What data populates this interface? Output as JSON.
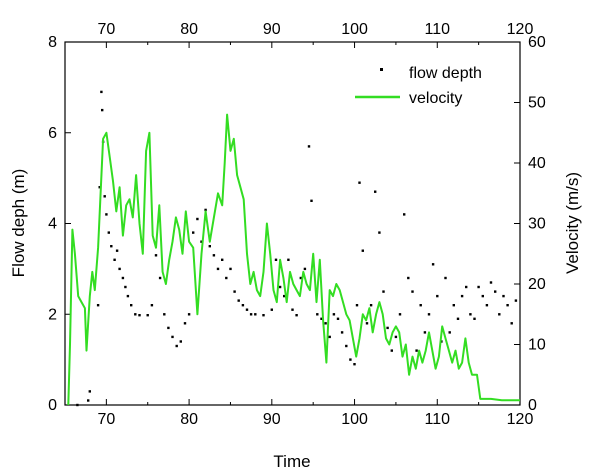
{
  "chart_data": {
    "type": "scatter",
    "xlabel": "Time",
    "ylabel_left": "Flow deph (m)",
    "ylabel_right": "Velocity (m/s)",
    "xlim": [
      65,
      120
    ],
    "ylim_left": [
      0,
      8
    ],
    "ylim_right": [
      0,
      60
    ],
    "x_ticks": [
      "70",
      "80",
      "90",
      "100",
      "110",
      "120"
    ],
    "x_ticks_top": [
      "70",
      "80",
      "90",
      "100",
      "110",
      "120"
    ],
    "y_ticks_left": [
      "0",
      "2",
      "4",
      "6",
      "8"
    ],
    "y_ticks_right": [
      "0",
      "10",
      "20",
      "30",
      "40",
      "50",
      "60"
    ],
    "grid": false,
    "legend_position": "top-right",
    "colors": {
      "flow_depth": "#000000",
      "velocity": "#33dd22"
    },
    "series": [
      {
        "name": "flow depth",
        "type": "scatter",
        "axis": "left",
        "points": [
          [
            66.5,
            0.0
          ],
          [
            67.8,
            0.1
          ],
          [
            68.0,
            0.3
          ],
          [
            69.0,
            2.2
          ],
          [
            69.2,
            4.8
          ],
          [
            69.4,
            6.9
          ],
          [
            69.5,
            6.5
          ],
          [
            69.6,
            5.8
          ],
          [
            69.8,
            4.6
          ],
          [
            70.0,
            4.2
          ],
          [
            70.3,
            3.8
          ],
          [
            70.6,
            3.5
          ],
          [
            71.0,
            3.2
          ],
          [
            71.3,
            3.4
          ],
          [
            71.6,
            3.0
          ],
          [
            72.0,
            2.8
          ],
          [
            72.3,
            2.6
          ],
          [
            72.6,
            2.4
          ],
          [
            73.0,
            2.2
          ],
          [
            73.5,
            2.0
          ],
          [
            74.0,
            1.98
          ],
          [
            75.0,
            1.98
          ],
          [
            75.5,
            2.2
          ],
          [
            76.0,
            3.3
          ],
          [
            76.5,
            2.8
          ],
          [
            77.0,
            2.0
          ],
          [
            77.5,
            1.7
          ],
          [
            78.0,
            1.5
          ],
          [
            78.5,
            1.3
          ],
          [
            79.0,
            1.4
          ],
          [
            79.5,
            1.8
          ],
          [
            80.0,
            2.0
          ],
          [
            80.5,
            3.8
          ],
          [
            81.0,
            4.1
          ],
          [
            81.5,
            3.6
          ],
          [
            82.0,
            4.3
          ],
          [
            82.5,
            3.5
          ],
          [
            83.0,
            3.3
          ],
          [
            83.5,
            3.0
          ],
          [
            84.0,
            3.2
          ],
          [
            84.5,
            2.8
          ],
          [
            85.0,
            3.0
          ],
          [
            85.5,
            2.5
          ],
          [
            86.0,
            2.3
          ],
          [
            86.5,
            2.2
          ],
          [
            87.0,
            2.1
          ],
          [
            87.5,
            2.0
          ],
          [
            88.0,
            2.0
          ],
          [
            89.0,
            1.98
          ],
          [
            90.0,
            2.1
          ],
          [
            90.5,
            3.2
          ],
          [
            91.0,
            2.6
          ],
          [
            91.5,
            2.4
          ],
          [
            92.0,
            3.2
          ],
          [
            92.5,
            2.1
          ],
          [
            93.0,
            1.98
          ],
          [
            93.5,
            2.8
          ],
          [
            94.0,
            3.0
          ],
          [
            94.5,
            5.7
          ],
          [
            94.8,
            4.5
          ],
          [
            95.0,
            3.2
          ],
          [
            95.5,
            2.0
          ],
          [
            96.0,
            1.9
          ],
          [
            96.5,
            1.8
          ],
          [
            97.0,
            1.5
          ],
          [
            97.5,
            2.0
          ],
          [
            98.0,
            1.9
          ],
          [
            98.5,
            1.6
          ],
          [
            99.0,
            1.3
          ],
          [
            99.5,
            1.0
          ],
          [
            100.0,
            0.9
          ],
          [
            100.3,
            2.2
          ],
          [
            100.6,
            4.9
          ],
          [
            101.0,
            3.4
          ],
          [
            101.5,
            1.8
          ],
          [
            102.0,
            2.2
          ],
          [
            102.5,
            4.7
          ],
          [
            103.0,
            3.8
          ],
          [
            103.5,
            2.5
          ],
          [
            104.0,
            1.7
          ],
          [
            104.5,
            1.2
          ],
          [
            105.0,
            1.5
          ],
          [
            105.5,
            2.0
          ],
          [
            106.0,
            4.2
          ],
          [
            106.5,
            2.8
          ],
          [
            107.0,
            2.5
          ],
          [
            107.5,
            1.2
          ],
          [
            108.0,
            2.2
          ],
          [
            108.5,
            1.6
          ],
          [
            109.0,
            2.0
          ],
          [
            109.5,
            3.1
          ],
          [
            110.0,
            2.4
          ],
          [
            110.5,
            1.4
          ],
          [
            111.0,
            2.8
          ],
          [
            111.5,
            1.6
          ],
          [
            112.0,
            2.2
          ],
          [
            112.5,
            1.9
          ],
          [
            113.0,
            2.4
          ],
          [
            113.5,
            2.6
          ],
          [
            114.0,
            2.0
          ],
          [
            114.5,
            1.9
          ],
          [
            115.0,
            2.6
          ],
          [
            115.5,
            2.4
          ],
          [
            116.0,
            2.2
          ],
          [
            116.5,
            2.7
          ],
          [
            117.0,
            2.5
          ],
          [
            117.5,
            2.0
          ],
          [
            118.0,
            2.4
          ],
          [
            118.5,
            2.2
          ],
          [
            119.0,
            1.8
          ],
          [
            119.5,
            2.3
          ]
        ]
      },
      {
        "name": "velocity",
        "type": "line",
        "axis": "right",
        "points": [
          [
            65.4,
            0
          ],
          [
            65.6,
            10
          ],
          [
            65.9,
            29
          ],
          [
            66.2,
            25
          ],
          [
            66.6,
            18
          ],
          [
            67.0,
            17
          ],
          [
            67.4,
            16
          ],
          [
            67.6,
            9
          ],
          [
            68.0,
            18
          ],
          [
            68.3,
            22
          ],
          [
            68.6,
            19
          ],
          [
            69.0,
            26
          ],
          [
            69.3,
            35
          ],
          [
            69.6,
            44
          ],
          [
            70.0,
            45
          ],
          [
            70.4,
            41
          ],
          [
            70.8,
            37
          ],
          [
            71.2,
            32
          ],
          [
            71.6,
            36
          ],
          [
            72.0,
            28
          ],
          [
            72.4,
            33
          ],
          [
            72.8,
            34
          ],
          [
            73.2,
            31
          ],
          [
            73.6,
            38
          ],
          [
            74.0,
            30
          ],
          [
            74.4,
            25
          ],
          [
            74.8,
            42
          ],
          [
            75.2,
            45
          ],
          [
            75.6,
            28
          ],
          [
            76.0,
            26
          ],
          [
            76.4,
            33
          ],
          [
            76.8,
            22
          ],
          [
            77.2,
            20
          ],
          [
            77.6,
            24
          ],
          [
            78.0,
            27
          ],
          [
            78.4,
            31
          ],
          [
            78.8,
            29
          ],
          [
            79.2,
            25
          ],
          [
            79.6,
            32
          ],
          [
            80.0,
            27
          ],
          [
            80.5,
            26
          ],
          [
            81.0,
            15
          ],
          [
            81.5,
            25
          ],
          [
            82.0,
            32
          ],
          [
            82.5,
            27
          ],
          [
            83.0,
            31
          ],
          [
            83.5,
            35
          ],
          [
            84.0,
            33
          ],
          [
            84.3,
            40
          ],
          [
            84.6,
            48
          ],
          [
            85.0,
            42
          ],
          [
            85.4,
            44
          ],
          [
            85.8,
            38
          ],
          [
            86.2,
            36
          ],
          [
            86.6,
            34
          ],
          [
            87.0,
            25
          ],
          [
            87.4,
            20
          ],
          [
            87.8,
            22
          ],
          [
            88.2,
            19
          ],
          [
            88.6,
            18
          ],
          [
            89.0,
            22
          ],
          [
            89.4,
            30
          ],
          [
            89.8,
            25
          ],
          [
            90.2,
            19
          ],
          [
            90.6,
            17
          ],
          [
            91.0,
            24
          ],
          [
            91.4,
            21
          ],
          [
            91.8,
            17
          ],
          [
            92.2,
            22
          ],
          [
            92.6,
            20
          ],
          [
            93.0,
            19
          ],
          [
            93.4,
            18
          ],
          [
            93.8,
            22
          ],
          [
            94.2,
            20
          ],
          [
            94.6,
            19
          ],
          [
            95.0,
            25
          ],
          [
            95.4,
            17
          ],
          [
            95.8,
            24
          ],
          [
            96.2,
            14
          ],
          [
            96.6,
            7
          ],
          [
            97.0,
            19
          ],
          [
            97.4,
            18
          ],
          [
            97.8,
            20
          ],
          [
            98.2,
            19
          ],
          [
            98.6,
            17
          ],
          [
            99.0,
            15
          ],
          [
            99.4,
            14
          ],
          [
            99.8,
            11
          ],
          [
            100.2,
            8
          ],
          [
            100.6,
            11
          ],
          [
            101.0,
            15
          ],
          [
            101.4,
            14
          ],
          [
            101.8,
            16
          ],
          [
            102.2,
            12
          ],
          [
            102.6,
            15
          ],
          [
            103.0,
            17
          ],
          [
            103.4,
            15
          ],
          [
            103.8,
            11
          ],
          [
            104.2,
            10
          ],
          [
            104.6,
            12
          ],
          [
            105.0,
            13
          ],
          [
            105.4,
            12
          ],
          [
            105.8,
            8
          ],
          [
            106.2,
            10
          ],
          [
            106.6,
            5
          ],
          [
            107.0,
            8
          ],
          [
            107.4,
            6
          ],
          [
            107.8,
            9
          ],
          [
            108.2,
            7
          ],
          [
            108.6,
            9
          ],
          [
            109.0,
            12
          ],
          [
            109.4,
            9
          ],
          [
            109.8,
            6
          ],
          [
            110.2,
            8
          ],
          [
            110.6,
            13
          ],
          [
            111.0,
            11
          ],
          [
            111.4,
            9
          ],
          [
            111.8,
            7
          ],
          [
            112.2,
            9
          ],
          [
            112.6,
            6
          ],
          [
            113.0,
            7
          ],
          [
            113.4,
            11
          ],
          [
            113.8,
            7
          ],
          [
            114.2,
            5
          ],
          [
            114.8,
            5
          ],
          [
            115.2,
            1
          ],
          [
            116.5,
            1
          ],
          [
            117.8,
            0.8
          ],
          [
            120,
            0.8
          ]
        ]
      }
    ]
  }
}
